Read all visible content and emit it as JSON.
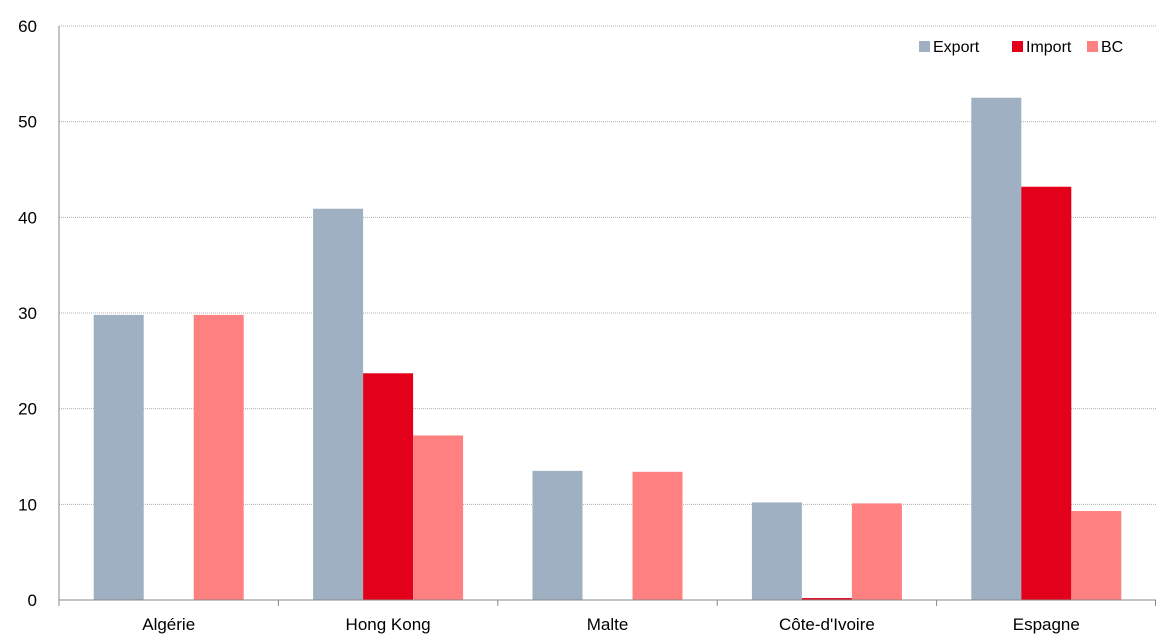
{
  "chart_data": {
    "type": "bar",
    "categories": [
      "Algérie",
      "Hong Kong",
      "Malte",
      "Côte-d'Ivoire",
      "Espagne"
    ],
    "series": [
      {
        "name": "Export",
        "color": "#9eb0c1",
        "values": [
          29.8,
          40.9,
          13.5,
          10.2,
          52.5
        ]
      },
      {
        "name": "Import",
        "color": "#e2001a",
        "values": [
          0,
          23.7,
          0,
          0.2,
          43.2
        ]
      },
      {
        "name": "BC",
        "color": "#ff8080",
        "values": [
          29.8,
          17.2,
          13.4,
          10.1,
          9.3
        ]
      }
    ],
    "ylim": [
      0,
      60
    ],
    "yticks": [
      "0",
      "10",
      "20",
      "30",
      "40",
      "50",
      "60"
    ],
    "grid": true,
    "legend_position": "top-right",
    "title": "",
    "xlabel": "",
    "ylabel": ""
  }
}
